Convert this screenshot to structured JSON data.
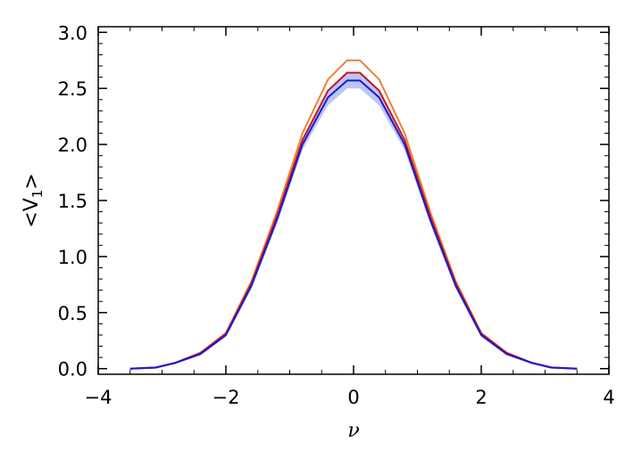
{
  "chart_data": {
    "type": "line",
    "title": "",
    "xlabel": "ν",
    "ylabel": "<V",
    "ylabel_subscript": "1",
    "ylabel_suffix": ">",
    "xlim": [
      -4,
      4
    ],
    "ylim": [
      -0.05,
      3.05
    ],
    "x_ticks": [
      -4,
      -2,
      0,
      2,
      4
    ],
    "x_tick_labels": [
      "−4",
      "−2",
      "0",
      "2",
      "4"
    ],
    "y_ticks": [
      0.0,
      0.5,
      1.0,
      1.5,
      2.0,
      2.5,
      3.0
    ],
    "y_tick_labels": [
      "0.0",
      "0.5",
      "1.0",
      "1.5",
      "2.0",
      "2.5",
      "3.0"
    ],
    "grid": false,
    "legend": "none",
    "x": [
      -3.5,
      -3.1,
      -2.8,
      -2.4,
      -2.0,
      -1.6,
      -1.2,
      -0.8,
      -0.4,
      -0.1,
      0.1,
      0.4,
      0.8,
      1.2,
      1.6,
      2.0,
      2.4,
      2.8,
      3.1,
      3.5
    ],
    "series": [
      {
        "color": "#e8823a",
        "values": [
          0.0,
          0.01,
          0.05,
          0.14,
          0.32,
          0.78,
          1.4,
          2.1,
          2.58,
          2.75,
          2.75,
          2.58,
          2.1,
          1.4,
          0.78,
          0.32,
          0.14,
          0.05,
          0.01,
          0.0
        ]
      },
      {
        "color": "#cc1111",
        "values": [
          0.0,
          0.01,
          0.05,
          0.14,
          0.31,
          0.76,
          1.36,
          2.04,
          2.48,
          2.64,
          2.64,
          2.48,
          2.04,
          1.36,
          0.76,
          0.31,
          0.14,
          0.05,
          0.01,
          0.0
        ]
      },
      {
        "color": "#1a1ad0",
        "values": [
          0.0,
          0.01,
          0.05,
          0.13,
          0.3,
          0.74,
          1.33,
          2.0,
          2.42,
          2.57,
          2.57,
          2.42,
          2.0,
          1.33,
          0.74,
          0.3,
          0.13,
          0.05,
          0.01,
          0.0
        ]
      }
    ],
    "band": {
      "color": "#8f9ef0",
      "lower": [
        0.0,
        0.01,
        0.04,
        0.12,
        0.28,
        0.71,
        1.29,
        1.95,
        2.35,
        2.5,
        2.5,
        2.35,
        1.95,
        1.29,
        0.71,
        0.28,
        0.12,
        0.04,
        0.01,
        0.0
      ],
      "upper": [
        0.01,
        0.02,
        0.06,
        0.15,
        0.32,
        0.77,
        1.37,
        2.05,
        2.48,
        2.63,
        2.63,
        2.48,
        2.05,
        1.37,
        0.77,
        0.32,
        0.15,
        0.06,
        0.02,
        0.01
      ]
    }
  }
}
